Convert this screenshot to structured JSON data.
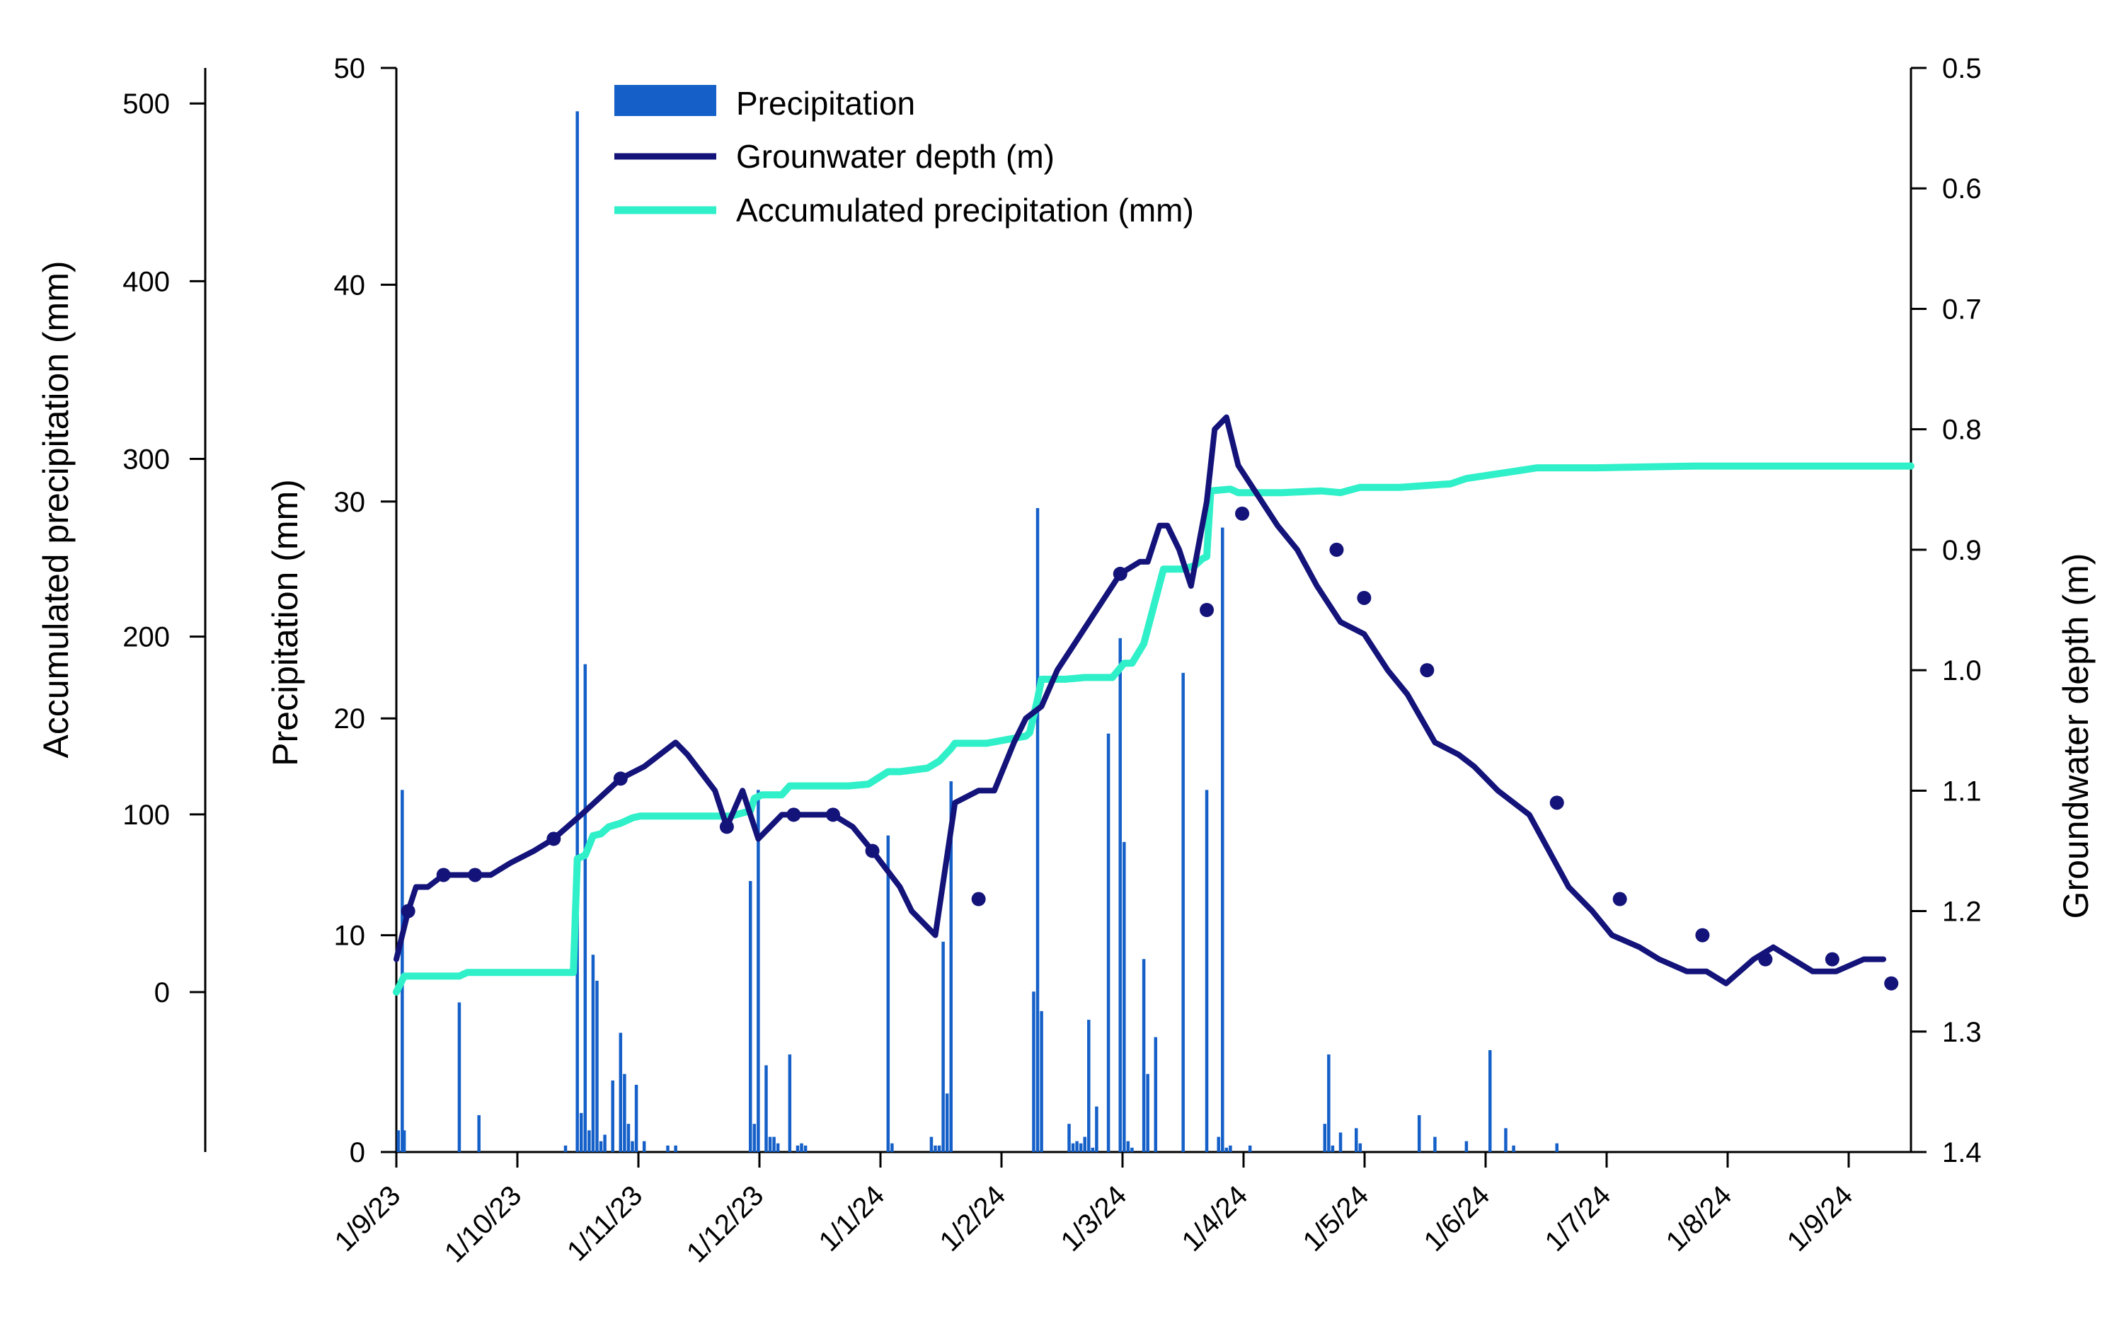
{
  "chart_data": {
    "type": "bar+line",
    "title": "",
    "x_axis": {
      "type": "date",
      "ticks": [
        "1/9/23",
        "1/10/23",
        "1/11/23",
        "1/12/23",
        "1/1/24",
        "1/2/24",
        "1/3/24",
        "1/4/24",
        "1/5/24",
        "1/6/24",
        "1/7/24",
        "1/8/24",
        "1/9/24"
      ],
      "range_days": [
        0,
        385
      ]
    },
    "axes": {
      "precipitation": {
        "label": "Precipitation (mm)",
        "min": 0,
        "max": 50,
        "ticks": [
          "0",
          "10",
          "20",
          "30",
          "40",
          "50"
        ]
      },
      "accumulated": {
        "label": "Accumulated  precipitation (mm)",
        "min": -90,
        "max": 520,
        "ticks": [
          "0",
          "100",
          "200",
          "300",
          "400",
          "500"
        ]
      },
      "groundwater": {
        "label": "Groundwater depth (m)",
        "min": 0.5,
        "max": 1.4,
        "inverted": true,
        "ticks": [
          "0.5",
          "0.6",
          "0.7",
          "0.8",
          "0.9",
          "1.0",
          "1.1",
          "1.2",
          "1.3",
          "1.4"
        ]
      }
    },
    "legend": {
      "position": "top-left",
      "entries": [
        {
          "name": "Precipitation",
          "color": "#1560c8"
        },
        {
          "name": "Grounwater depth (m)",
          "color": "#13137a"
        },
        {
          "name": "Accumulated precipitation (mm)",
          "color": "#2ff0c8"
        }
      ]
    },
    "colors": {
      "precipitation": "#1560c8",
      "groundwater": "#13137a",
      "accumulated": "#2ff0c8"
    },
    "precipitation_series": {
      "name": "Precipitation",
      "day": [
        0.5,
        1.5,
        2,
        16,
        21,
        43,
        46,
        47,
        48,
        49,
        50,
        51,
        52,
        53,
        55,
        57,
        58,
        59,
        60,
        61,
        63,
        69,
        71,
        90,
        91,
        92,
        94,
        95,
        96,
        97,
        100,
        102,
        103,
        104,
        125,
        126,
        136,
        137,
        138,
        139,
        140,
        141,
        162,
        163,
        164,
        171,
        172,
        173,
        174,
        175,
        176,
        177,
        178,
        181,
        184,
        185,
        186,
        187,
        190,
        191,
        193,
        200,
        206,
        209,
        210,
        211,
        212,
        217,
        236,
        237,
        238,
        240,
        244,
        245,
        260,
        264,
        272,
        278,
        282,
        284,
        295
      ],
      "values": [
        1,
        16.7,
        1,
        6.9,
        1.7,
        0.3,
        48,
        1.8,
        22.5,
        1,
        9.1,
        7.9,
        0.5,
        0.8,
        3.3,
        5.5,
        3.6,
        1.3,
        0.5,
        3.1,
        0.5,
        0.3,
        0.3,
        12.5,
        1.3,
        16.7,
        4,
        0.7,
        0.7,
        0.4,
        4.5,
        0.3,
        0.4,
        0.3,
        14.6,
        0.4,
        0.7,
        0.3,
        0.3,
        9.7,
        2.7,
        17.1,
        7.4,
        29.7,
        6.5,
        1.3,
        0.4,
        0.5,
        0.4,
        0.7,
        6.1,
        0.2,
        2.1,
        19.3,
        23.7,
        14.3,
        0.5,
        0.2,
        8.9,
        3.6,
        5.3,
        22.1,
        16.7,
        0.7,
        28.8,
        0.2,
        0.3,
        0.3,
        1.3,
        4.5,
        0.3,
        0.9,
        1.1,
        0.4,
        1.7,
        0.7,
        0.5,
        4.7,
        1.1,
        0.3,
        0.4
      ]
    },
    "groundwater_series": {
      "name": "Grounwater depth (m)",
      "day": [
        0,
        3,
        5,
        8,
        12,
        15,
        20,
        24,
        29,
        35,
        40,
        47,
        57,
        63,
        71,
        74,
        81,
        84,
        88,
        92,
        98,
        101,
        106,
        111,
        116,
        121,
        128,
        131,
        137,
        142,
        148,
        152,
        157,
        160,
        164,
        168,
        172,
        176,
        180,
        184,
        189,
        191,
        194,
        196,
        199,
        202,
        206,
        208,
        211,
        214,
        220,
        224,
        229,
        234,
        240,
        246,
        252,
        257,
        264,
        270,
        274,
        280,
        288,
        298,
        304,
        309,
        316,
        321,
        328,
        333,
        338,
        345,
        350,
        355,
        360,
        366,
        373,
        378
      ],
      "values": [
        1.24,
        1.2,
        1.18,
        1.18,
        1.17,
        1.17,
        1.17,
        1.17,
        1.16,
        1.15,
        1.14,
        1.12,
        1.09,
        1.08,
        1.06,
        1.07,
        1.1,
        1.13,
        1.1,
        1.14,
        1.12,
        1.12,
        1.12,
        1.12,
        1.13,
        1.15,
        1.18,
        1.2,
        1.22,
        1.11,
        1.1,
        1.1,
        1.06,
        1.04,
        1.03,
        1.0,
        0.98,
        0.96,
        0.94,
        0.92,
        0.91,
        0.91,
        0.88,
        0.88,
        0.9,
        0.93,
        0.86,
        0.8,
        0.79,
        0.83,
        0.86,
        0.88,
        0.9,
        0.93,
        0.96,
        0.97,
        1.0,
        1.02,
        1.06,
        1.07,
        1.08,
        1.1,
        1.12,
        1.18,
        1.2,
        1.22,
        1.23,
        1.24,
        1.25,
        1.25,
        1.26,
        1.24,
        1.23,
        1.24,
        1.25,
        1.25,
        1.24,
        1.24
      ],
      "markers": [
        {
          "day": 3,
          "value": 1.2
        },
        {
          "day": 12,
          "value": 1.17
        },
        {
          "day": 20,
          "value": 1.17
        },
        {
          "day": 40,
          "value": 1.14
        },
        {
          "day": 57,
          "value": 1.09
        },
        {
          "day": 84,
          "value": 1.13
        },
        {
          "day": 101,
          "value": 1.12
        },
        {
          "day": 111,
          "value": 1.12
        },
        {
          "day": 121,
          "value": 1.15
        },
        {
          "day": 148,
          "value": 1.19
        },
        {
          "day": 184,
          "value": 0.92
        },
        {
          "day": 206,
          "value": 0.95
        },
        {
          "day": 215,
          "value": 0.87
        },
        {
          "day": 239,
          "value": 0.9
        },
        {
          "day": 246,
          "value": 0.94
        },
        {
          "day": 262,
          "value": 1.0
        },
        {
          "day": 295,
          "value": 1.11
        },
        {
          "day": 311,
          "value": 1.19
        },
        {
          "day": 332,
          "value": 1.22
        },
        {
          "day": 348,
          "value": 1.24
        },
        {
          "day": 365,
          "value": 1.24
        },
        {
          "day": 380,
          "value": 1.26
        }
      ]
    },
    "accumulated_series": {
      "name": "Accumulated precipitation (mm)",
      "day": [
        0,
        2,
        10,
        16,
        18,
        20,
        45,
        46,
        48,
        50,
        52,
        54,
        57,
        60,
        62,
        64,
        66,
        70,
        75,
        80,
        85,
        90,
        91,
        92,
        93,
        95,
        98,
        100,
        103,
        110,
        115,
        120,
        125,
        128,
        135,
        138,
        141,
        142,
        145,
        150,
        155,
        160,
        161,
        163,
        164,
        166,
        170,
        175,
        180,
        182,
        185,
        187,
        190,
        195,
        200,
        203,
        205,
        206,
        207,
        212,
        214,
        225,
        235,
        240,
        245,
        255,
        268,
        272,
        290,
        300,
        305,
        330,
        345,
        360,
        385
      ],
      "values": [
        0,
        9,
        9,
        9,
        11,
        11,
        11,
        75,
        77,
        88,
        89,
        93,
        95,
        98,
        99,
        99,
        99,
        99,
        99,
        99,
        99,
        102,
        109,
        110,
        111,
        111,
        111,
        116,
        116,
        116,
        116,
        117,
        124,
        124,
        126,
        130,
        137,
        140,
        140,
        140,
        142,
        144,
        146,
        165,
        176,
        176,
        176,
        177,
        177,
        177,
        185,
        185,
        196,
        238,
        238,
        240,
        244,
        245,
        282,
        283,
        281,
        281,
        282,
        281,
        284,
        284,
        286,
        289,
        295,
        295,
        295,
        296,
        296,
        296,
        296
      ]
    }
  }
}
